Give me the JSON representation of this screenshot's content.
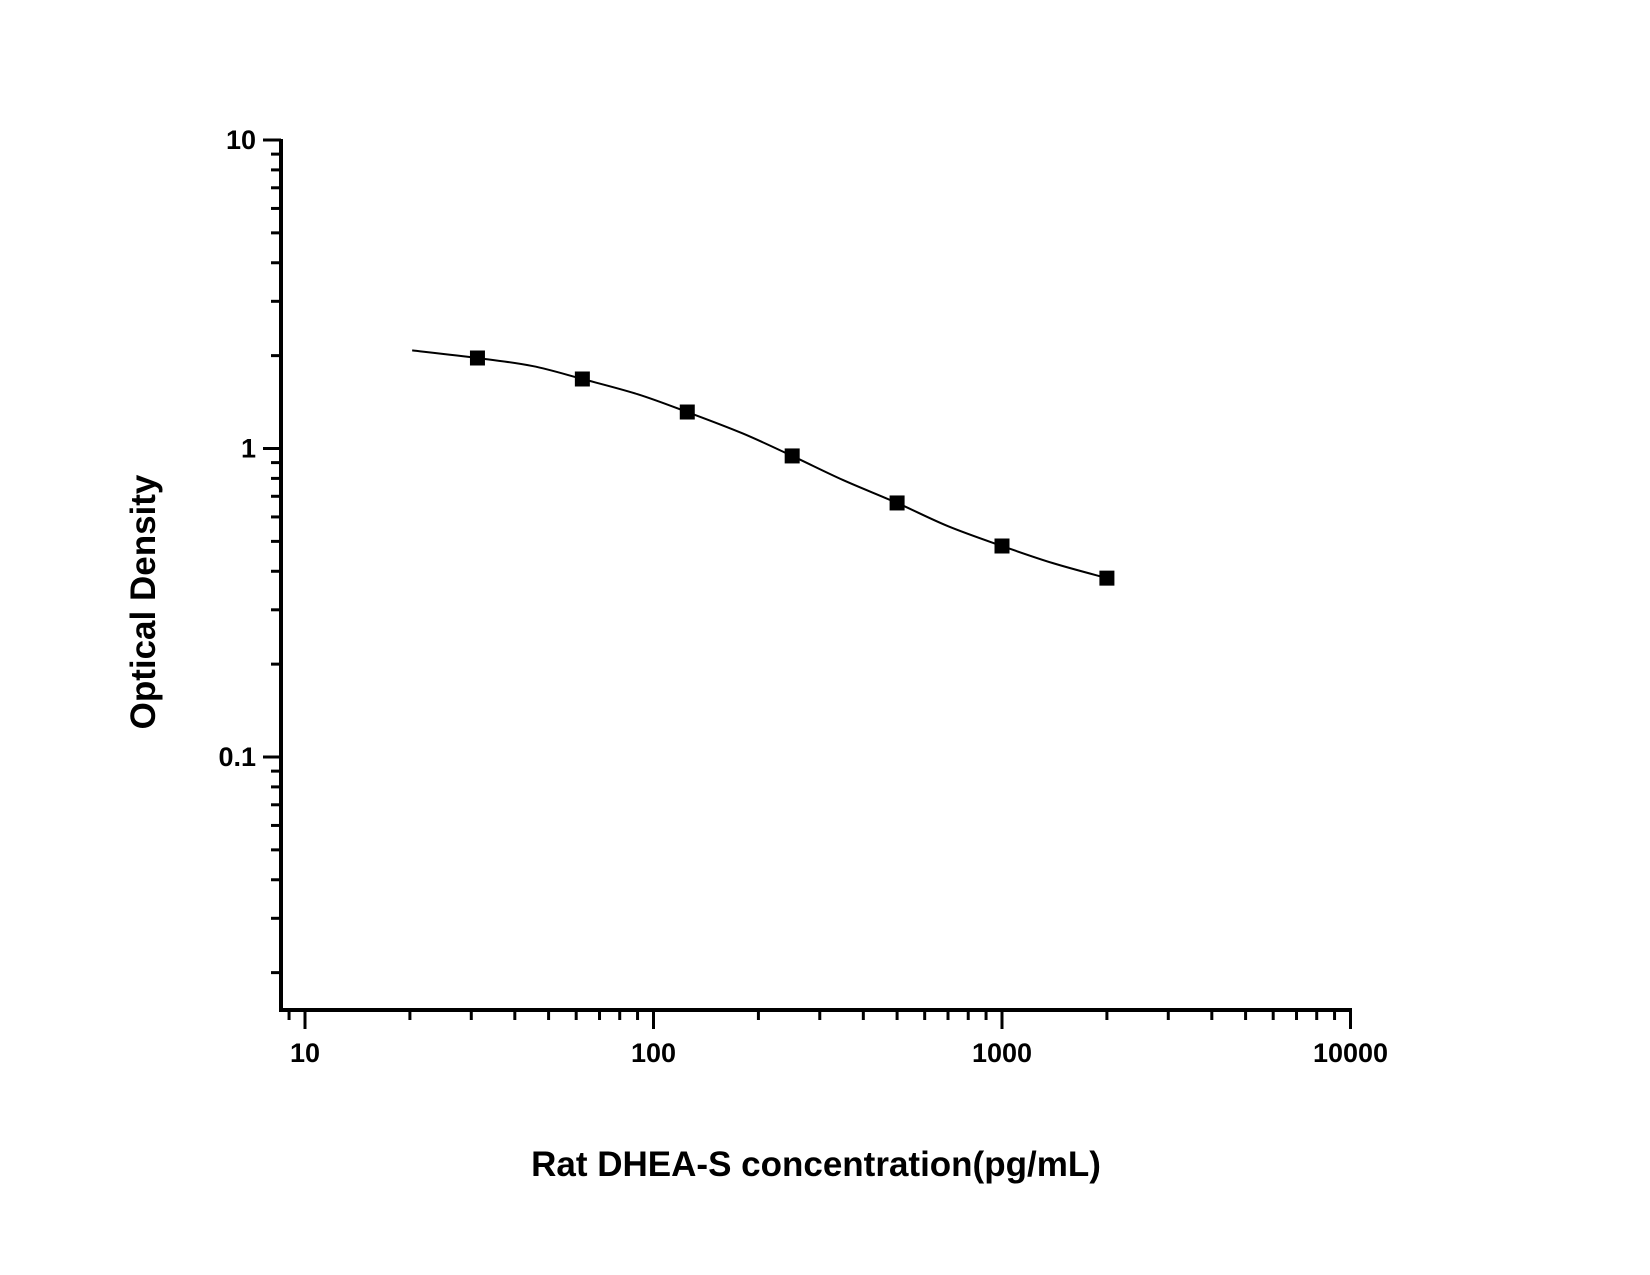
{
  "chart_data": {
    "type": "scatter",
    "title": "",
    "xlabel": "Rat DHEA-S concentration(pg/mL)",
    "ylabel": "Optical Density",
    "xscale": "log",
    "yscale": "log",
    "xlim": [
      8.5,
      10000
    ],
    "ylim": [
      0.015,
      10
    ],
    "x_ticks": [
      10,
      100,
      1000,
      10000
    ],
    "x_tick_labels": [
      "10",
      "100",
      "1000",
      "10000"
    ],
    "y_ticks": [
      0.1,
      1,
      10
    ],
    "y_tick_labels": [
      "0.1",
      "1",
      "10"
    ],
    "grid": false,
    "legend": null,
    "series": [
      {
        "name": "Standard points",
        "marker": "square",
        "color": "#000000",
        "x": [
          31.25,
          62.5,
          125,
          250,
          500,
          1000,
          2000
        ],
        "y": [
          1.965,
          1.68,
          1.313,
          0.946,
          0.666,
          0.483,
          0.38
        ]
      },
      {
        "name": "Fitted curve",
        "style": "line",
        "color": "#000000",
        "x": [
          20.3,
          31.25,
          45,
          62.5,
          90,
          125,
          180,
          250,
          350,
          500,
          700,
          1000,
          1400,
          2000
        ],
        "y": [
          2.08,
          1.965,
          1.85,
          1.68,
          1.5,
          1.313,
          1.12,
          0.946,
          0.79,
          0.666,
          0.56,
          0.483,
          0.425,
          0.38
        ]
      }
    ]
  }
}
